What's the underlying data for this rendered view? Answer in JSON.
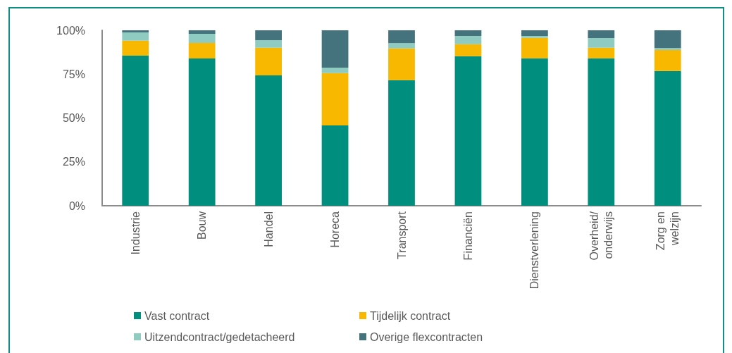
{
  "chart_data": {
    "type": "bar",
    "stacked": true,
    "categories": [
      "Industrie",
      "Bouw",
      "Handel",
      "Horeca",
      "Transport",
      "Financiën",
      "Dienstverlening",
      "Overheid/onderwijs",
      "Zorg en welzijn"
    ],
    "series": [
      {
        "name": "Vast contract",
        "color": "#008f7f",
        "values": [
          85.5,
          83.9,
          74.3,
          45.8,
          71.6,
          85.2,
          84.0,
          84.0,
          76.8
        ]
      },
      {
        "name": "Tijdelijk contract",
        "color": "#f8b800",
        "values": [
          8.6,
          8.9,
          15.8,
          29.8,
          18.1,
          6.9,
          11.7,
          6.1,
          12.0
        ]
      },
      {
        "name": "Uitzendcontract/gedetacheerd",
        "color": "#8fcbc1",
        "values": [
          4.7,
          5.2,
          4.3,
          3.1,
          3.0,
          4.7,
          1.1,
          5.5,
          1.1
        ]
      },
      {
        "name": "Overige flexcontracten",
        "color": "#45737d",
        "values": [
          1.2,
          2.0,
          5.6,
          21.3,
          7.3,
          3.2,
          3.2,
          4.4,
          10.1
        ]
      }
    ],
    "ylim": [
      0,
      100
    ],
    "yticks": [
      {
        "value": 0,
        "label": "0%"
      },
      {
        "value": 25,
        "label": "25%"
      },
      {
        "value": 50,
        "label": "50%"
      },
      {
        "value": 75,
        "label": "75%"
      },
      {
        "value": 100,
        "label": "100%"
      }
    ],
    "grid": false,
    "legend": "bottom"
  }
}
